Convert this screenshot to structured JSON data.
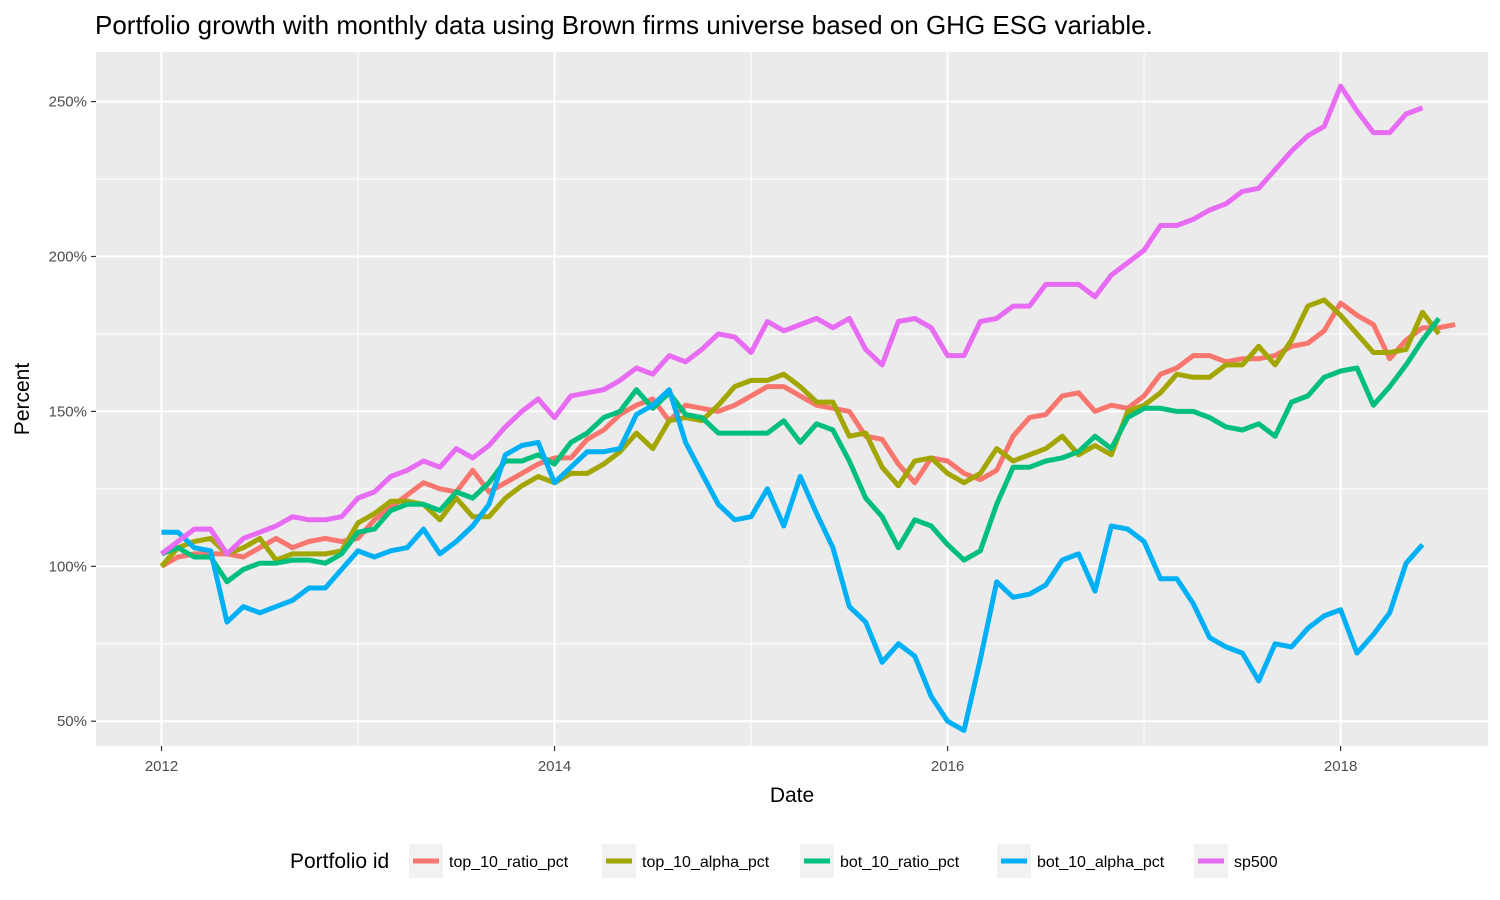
{
  "chart_data": {
    "type": "line",
    "title": "Portfolio growth with monthly data using Brown firms universe based on GHG ESG variable.",
    "xlabel": "Date",
    "ylabel": "Percent",
    "legend_title": "Portfolio id",
    "legend_position": "bottom",
    "grid": true,
    "xlim": [
      "2011-09",
      "2018-10"
    ],
    "ylim": [
      42,
      266
    ],
    "x_ticks": [
      "2012",
      "2014",
      "2016",
      "2018"
    ],
    "y_ticks": [
      50,
      100,
      150,
      200,
      250
    ],
    "y_tick_labels": [
      "50%",
      "100%",
      "150%",
      "200%",
      "250%"
    ],
    "x_start": "2012-01",
    "series": [
      {
        "name": "top_10_ratio_pct",
        "color": "#F8766D",
        "values": [
          100,
          103,
          104,
          104,
          104,
          103,
          106,
          109,
          106,
          108,
          109,
          108,
          109,
          115,
          119,
          123,
          127,
          125,
          124,
          131,
          124,
          127,
          130,
          133,
          135,
          135,
          141,
          144,
          149,
          152,
          154,
          147,
          152,
          151,
          150,
          152,
          155,
          158,
          158,
          155,
          152,
          151,
          150,
          142,
          141,
          133,
          127,
          135,
          134,
          130,
          128,
          131,
          142,
          148,
          149,
          155,
          156,
          150,
          152,
          151,
          155,
          162,
          164,
          168,
          168,
          166,
          167,
          167,
          168,
          171,
          172,
          176,
          185,
          181,
          178,
          167,
          173,
          177,
          177,
          178
        ]
      },
      {
        "name": "top_10_alpha_pct",
        "color": "#A3A500",
        "values": [
          100,
          106,
          108,
          109,
          104,
          106,
          109,
          102,
          104,
          104,
          104,
          105,
          114,
          117,
          121,
          121,
          120,
          115,
          122,
          116,
          116,
          122,
          126,
          129,
          127,
          130,
          130,
          133,
          137,
          143,
          138,
          147,
          148,
          147,
          152,
          158,
          160,
          160,
          162,
          158,
          153,
          153,
          142,
          143,
          132,
          126,
          134,
          135,
          130,
          127,
          130,
          138,
          134,
          136,
          138,
          142,
          136,
          139,
          136,
          150,
          152,
          156,
          162,
          161,
          161,
          165,
          165,
          171,
          165,
          173,
          184,
          186,
          181,
          175,
          169,
          169,
          170,
          182,
          175
        ]
      },
      {
        "name": "bot_10_ratio_pct",
        "color": "#00BF7D",
        "values": [
          104,
          106,
          103,
          103,
          95,
          99,
          101,
          101,
          102,
          102,
          101,
          104,
          111,
          112,
          118,
          120,
          120,
          118,
          124,
          122,
          127,
          134,
          134,
          136,
          133,
          140,
          143,
          148,
          150,
          157,
          151,
          156,
          149,
          148,
          143,
          143,
          143,
          143,
          147,
          140,
          146,
          144,
          134,
          122,
          116,
          106,
          115,
          113,
          107,
          102,
          105,
          120,
          132,
          132,
          134,
          135,
          137,
          142,
          138,
          148,
          151,
          151,
          150,
          150,
          148,
          145,
          144,
          146,
          142,
          153,
          155,
          161,
          163,
          164,
          152,
          158,
          165,
          173,
          180
        ]
      },
      {
        "name": "bot_10_alpha_pct",
        "color": "#00B0F6",
        "values": [
          111,
          111,
          106,
          105,
          82,
          87,
          85,
          87,
          89,
          93,
          93,
          99,
          105,
          103,
          105,
          106,
          112,
          104,
          108,
          113,
          120,
          136,
          139,
          140,
          127,
          132,
          137,
          137,
          138,
          149,
          152,
          157,
          140,
          130,
          120,
          115,
          116,
          125,
          113,
          129,
          117,
          106,
          87,
          82,
          69,
          75,
          71,
          58,
          50,
          47,
          70,
          95,
          90,
          91,
          94,
          102,
          104,
          92,
          113,
          112,
          108,
          96,
          96,
          88,
          77,
          74,
          72,
          63,
          75,
          74,
          80,
          84,
          86,
          72,
          78,
          85,
          101,
          107
        ]
      },
      {
        "name": "sp500",
        "color": "#E76BF3",
        "values": [
          104,
          108,
          112,
          112,
          104,
          109,
          111,
          113,
          116,
          115,
          115,
          116,
          122,
          124,
          129,
          131,
          134,
          132,
          138,
          135,
          139,
          145,
          150,
          154,
          148,
          155,
          156,
          157,
          160,
          164,
          162,
          168,
          166,
          170,
          175,
          174,
          169,
          179,
          176,
          178,
          180,
          177,
          180,
          170,
          165,
          179,
          180,
          177,
          168,
          168,
          179,
          180,
          184,
          184,
          191,
          191,
          191,
          187,
          194,
          198,
          202,
          210,
          210,
          212,
          215,
          217,
          221,
          222,
          228,
          234,
          239,
          242,
          255,
          247,
          240,
          240,
          246,
          248
        ]
      }
    ]
  }
}
